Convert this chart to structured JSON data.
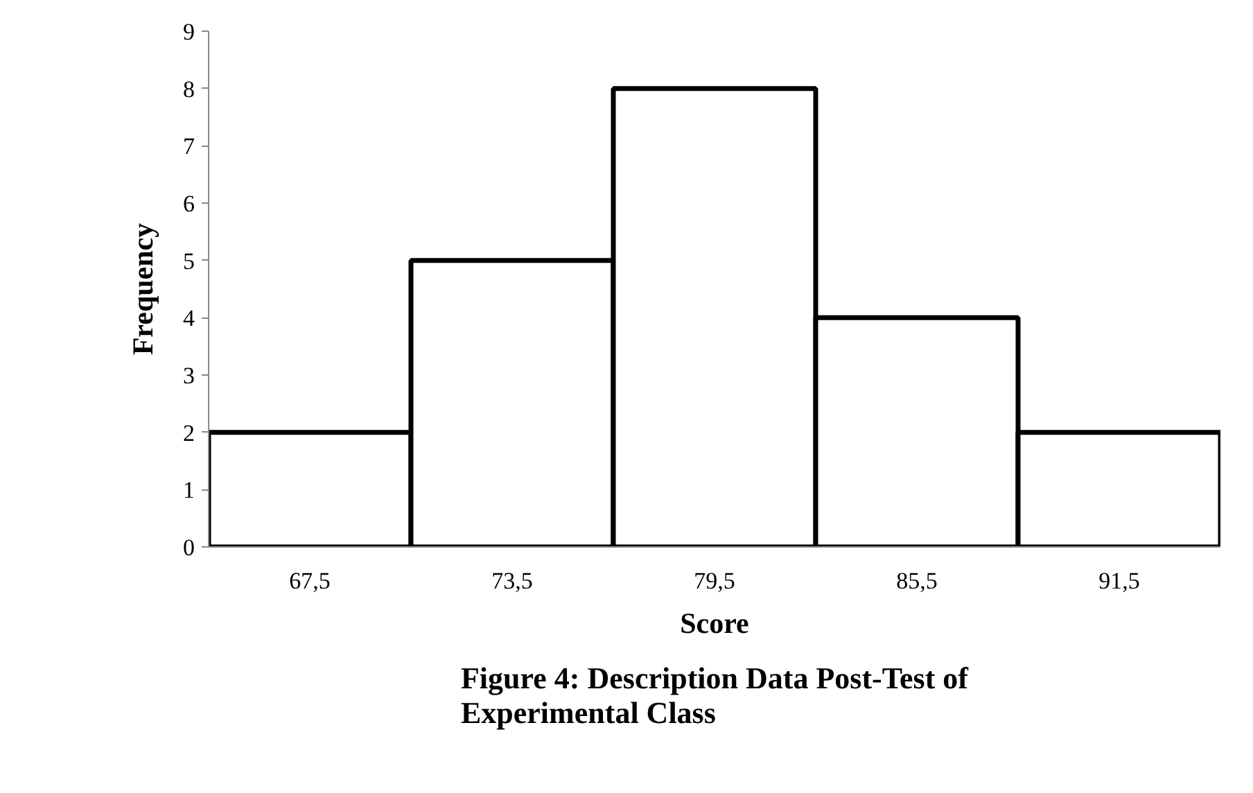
{
  "chart_data": {
    "type": "bar",
    "xlabel": "Score",
    "ylabel": "Frequency",
    "categories": [
      "67,5",
      "73,5",
      "79,5",
      "85,5",
      "91,5"
    ],
    "values": [
      2,
      5,
      8,
      4,
      2
    ],
    "color": "#ffffff",
    "ylim": [
      0,
      9
    ],
    "yticks": [
      0,
      1,
      2,
      3,
      4,
      5,
      6,
      7,
      8,
      9
    ],
    "grid": false,
    "annotations": [
      "Figure 4: Description Data Post-Test of\nExperimental Class"
    ]
  }
}
